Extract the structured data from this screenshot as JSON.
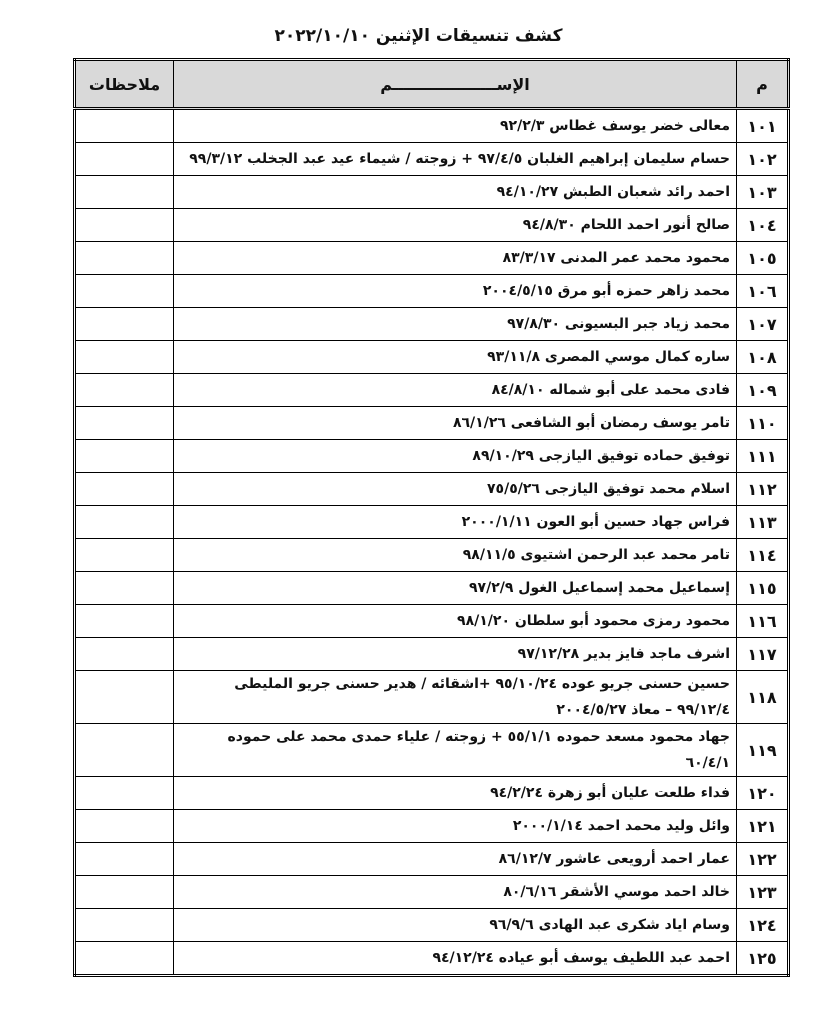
{
  "header": {
    "title": "كشف تنسيقات الإثنين ٢٠٢٢/١٠/١٠"
  },
  "table": {
    "columns": [
      "م",
      "الإســـــــــــــــــــم",
      "ملاحظات"
    ],
    "rows": [
      [
        "١٠١",
        "معالى خضر يوسف غطاس ٩٢/٢/٣"
      ],
      [
        "١٠٢",
        "حسام سليمان إبراهيم الغلبان ٩٧/٤/٥ + زوجته / شيماء عيد عبد الجخلب ٩٩/٣/١٢"
      ],
      [
        "١٠٣",
        "احمد رائد شعبان الطبش ٩٤/١٠/٢٧"
      ],
      [
        "١٠٤",
        "صالح أنور احمد اللحام ٩٤/٨/٣٠"
      ],
      [
        "١٠٥",
        "محمود محمد عمر المدنى ٨٣/٣/١٧"
      ],
      [
        "١٠٦",
        "محمد زاهر حمزه أبو مرق ٢٠٠٤/٥/١٥"
      ],
      [
        "١٠٧",
        "محمد زياد جبر البسيونى ٩٧/٨/٣٠"
      ],
      [
        "١٠٨",
        "ساره كمال موسي المصرى ٩٣/١١/٨"
      ],
      [
        "١٠٩",
        "فادى محمد على أبو شماله ٨٤/٨/١٠"
      ],
      [
        "١١٠",
        "تامر يوسف رمضان أبو الشافعى ٨٦/١/٢٦"
      ],
      [
        "١١١",
        "توفيق حماده توفيق اليازجى ٨٩/١٠/٢٩"
      ],
      [
        "١١٢",
        "اسلام محمد توفيق اليازجى ٧٥/٥/٢٦"
      ],
      [
        "١١٣",
        "فراس جهاد حسين أبو العون ٢٠٠٠/١/١١"
      ],
      [
        "١١٤",
        "تامر محمد عبد الرحمن اشتيوى ٩٨/١١/٥"
      ],
      [
        "١١٥",
        "إسماعيل محمد إسماعيل الغول ٩٧/٢/٩"
      ],
      [
        "١١٦",
        "محمود رمزى محمود أبو سلطان ٩٨/١/٢٠"
      ],
      [
        "١١٧",
        "اشرف ماجد فايز بدير ٩٧/١٢/٢٨"
      ],
      [
        "١١٨",
        "حسين حسنى جريو عوده ٩٥/١٠/٢٤ +اشقائه / هدير حسنى جريو المليطى ٩٩/١٢/٤ – معاذ ٢٠٠٤/٥/٢٧"
      ],
      [
        "١١٩",
        "جهاد محمود مسعد حموده ٥٥/١/١ + زوجته / علياء حمدى محمد على حموده ٦٠/٤/١"
      ],
      [
        "١٢٠",
        "فداء طلعت عليان أبو زهرة ٩٤/٢/٢٤"
      ],
      [
        "١٢١",
        "وائل وليد محمد احمد ٢٠٠٠/١/١٤"
      ],
      [
        "١٢٢",
        "عمار احمد أرويعى عاشور ٨٦/١٢/٧"
      ],
      [
        "١٢٣",
        "خالد احمد موسي الأشقر ٨٠/٦/١٦"
      ],
      [
        "١٢٤",
        "وسام اياد شكرى عبد الهادى ٩٦/٩/٦"
      ],
      [
        "١٢٥",
        "احمد عبد اللطيف يوسف أبو عياده ٩٤/١٢/٢٤"
      ]
    ]
  }
}
